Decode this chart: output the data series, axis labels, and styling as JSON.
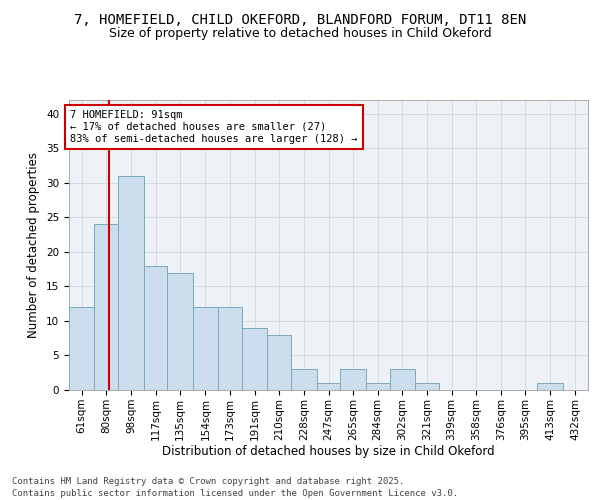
{
  "title": "7, HOMEFIELD, CHILD OKEFORD, BLANDFORD FORUM, DT11 8EN",
  "subtitle": "Size of property relative to detached houses in Child Okeford",
  "xlabel": "Distribution of detached houses by size in Child Okeford",
  "ylabel": "Number of detached properties",
  "bar_color": "#ccdded",
  "bar_edge_color": "#7aaabb",
  "grid_color": "#d0d8e0",
  "bg_color": "#eef2f7",
  "vline_x": 91,
  "vline_color": "#cc0000",
  "annotation_text": "7 HOMEFIELD: 91sqm\n← 17% of detached houses are smaller (27)\n83% of semi-detached houses are larger (128) →",
  "annotation_box_color": "white",
  "annotation_box_edge": "#cc0000",
  "categories": [
    "61sqm",
    "80sqm",
    "98sqm",
    "117sqm",
    "135sqm",
    "154sqm",
    "173sqm",
    "191sqm",
    "210sqm",
    "228sqm",
    "247sqm",
    "265sqm",
    "284sqm",
    "302sqm",
    "321sqm",
    "339sqm",
    "358sqm",
    "376sqm",
    "395sqm",
    "413sqm",
    "432sqm"
  ],
  "bin_edges": [
    61,
    80,
    98,
    117,
    135,
    154,
    173,
    191,
    210,
    228,
    247,
    265,
    284,
    302,
    321,
    339,
    358,
    376,
    395,
    413,
    432,
    451
  ],
  "values": [
    12,
    24,
    31,
    18,
    17,
    12,
    12,
    9,
    8,
    3,
    1,
    3,
    1,
    3,
    1,
    0,
    0,
    0,
    0,
    1,
    0
  ],
  "ylim": [
    0,
    42
  ],
  "yticks": [
    0,
    5,
    10,
    15,
    20,
    25,
    30,
    35,
    40
  ],
  "footer": "Contains HM Land Registry data © Crown copyright and database right 2025.\nContains public sector information licensed under the Open Government Licence v3.0.",
  "title_fontsize": 10,
  "subtitle_fontsize": 9,
  "xlabel_fontsize": 8.5,
  "ylabel_fontsize": 8.5,
  "tick_fontsize": 7.5,
  "annotation_fontsize": 7.5,
  "footer_fontsize": 6.5
}
